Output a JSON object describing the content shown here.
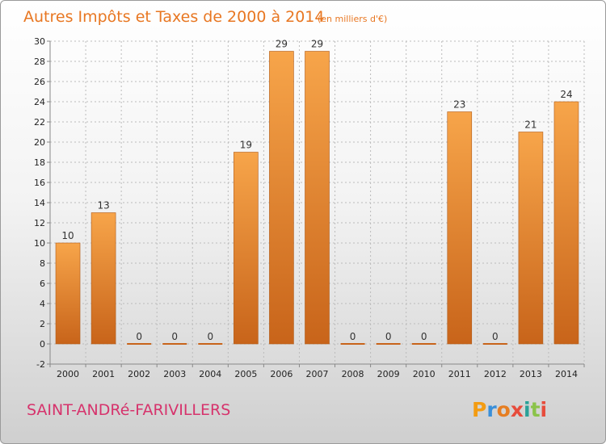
{
  "title": "Autres Impôts et Taxes de 2000 à 2014",
  "subtitle": "(en milliers d'€)",
  "commune": "SAINT-ANDRé-FARIVILLERS",
  "logo": {
    "letters": [
      "P",
      "r",
      "o",
      "x",
      "i",
      "t",
      "i"
    ],
    "colors": [
      "#f39c12",
      "#3a8fd9",
      "#e67e22",
      "#e74c3c",
      "#2aa198",
      "#8bc34a",
      "#e74c3c"
    ]
  },
  "colors": {
    "bar_light": "#f7a54a",
    "bar_dark": "#c8641a",
    "grid": "#bbbbbb",
    "title": "#e87722",
    "commune": "#d6336c"
  },
  "chart_data": {
    "type": "bar",
    "categories": [
      "2000",
      "2001",
      "2002",
      "2003",
      "2004",
      "2005",
      "2006",
      "2007",
      "2008",
      "2009",
      "2010",
      "2011",
      "2012",
      "2013",
      "2014"
    ],
    "values": [
      10,
      13,
      0,
      0,
      0,
      19,
      29,
      29,
      0,
      0,
      0,
      23,
      0,
      21,
      24
    ],
    "ylim": [
      -2,
      30
    ],
    "yticks": [
      -2,
      0,
      2,
      4,
      6,
      8,
      10,
      12,
      14,
      16,
      18,
      20,
      22,
      24,
      26,
      28,
      30
    ],
    "grid": true,
    "grid_style": "dashed",
    "xlabel": "",
    "ylabel": ""
  }
}
